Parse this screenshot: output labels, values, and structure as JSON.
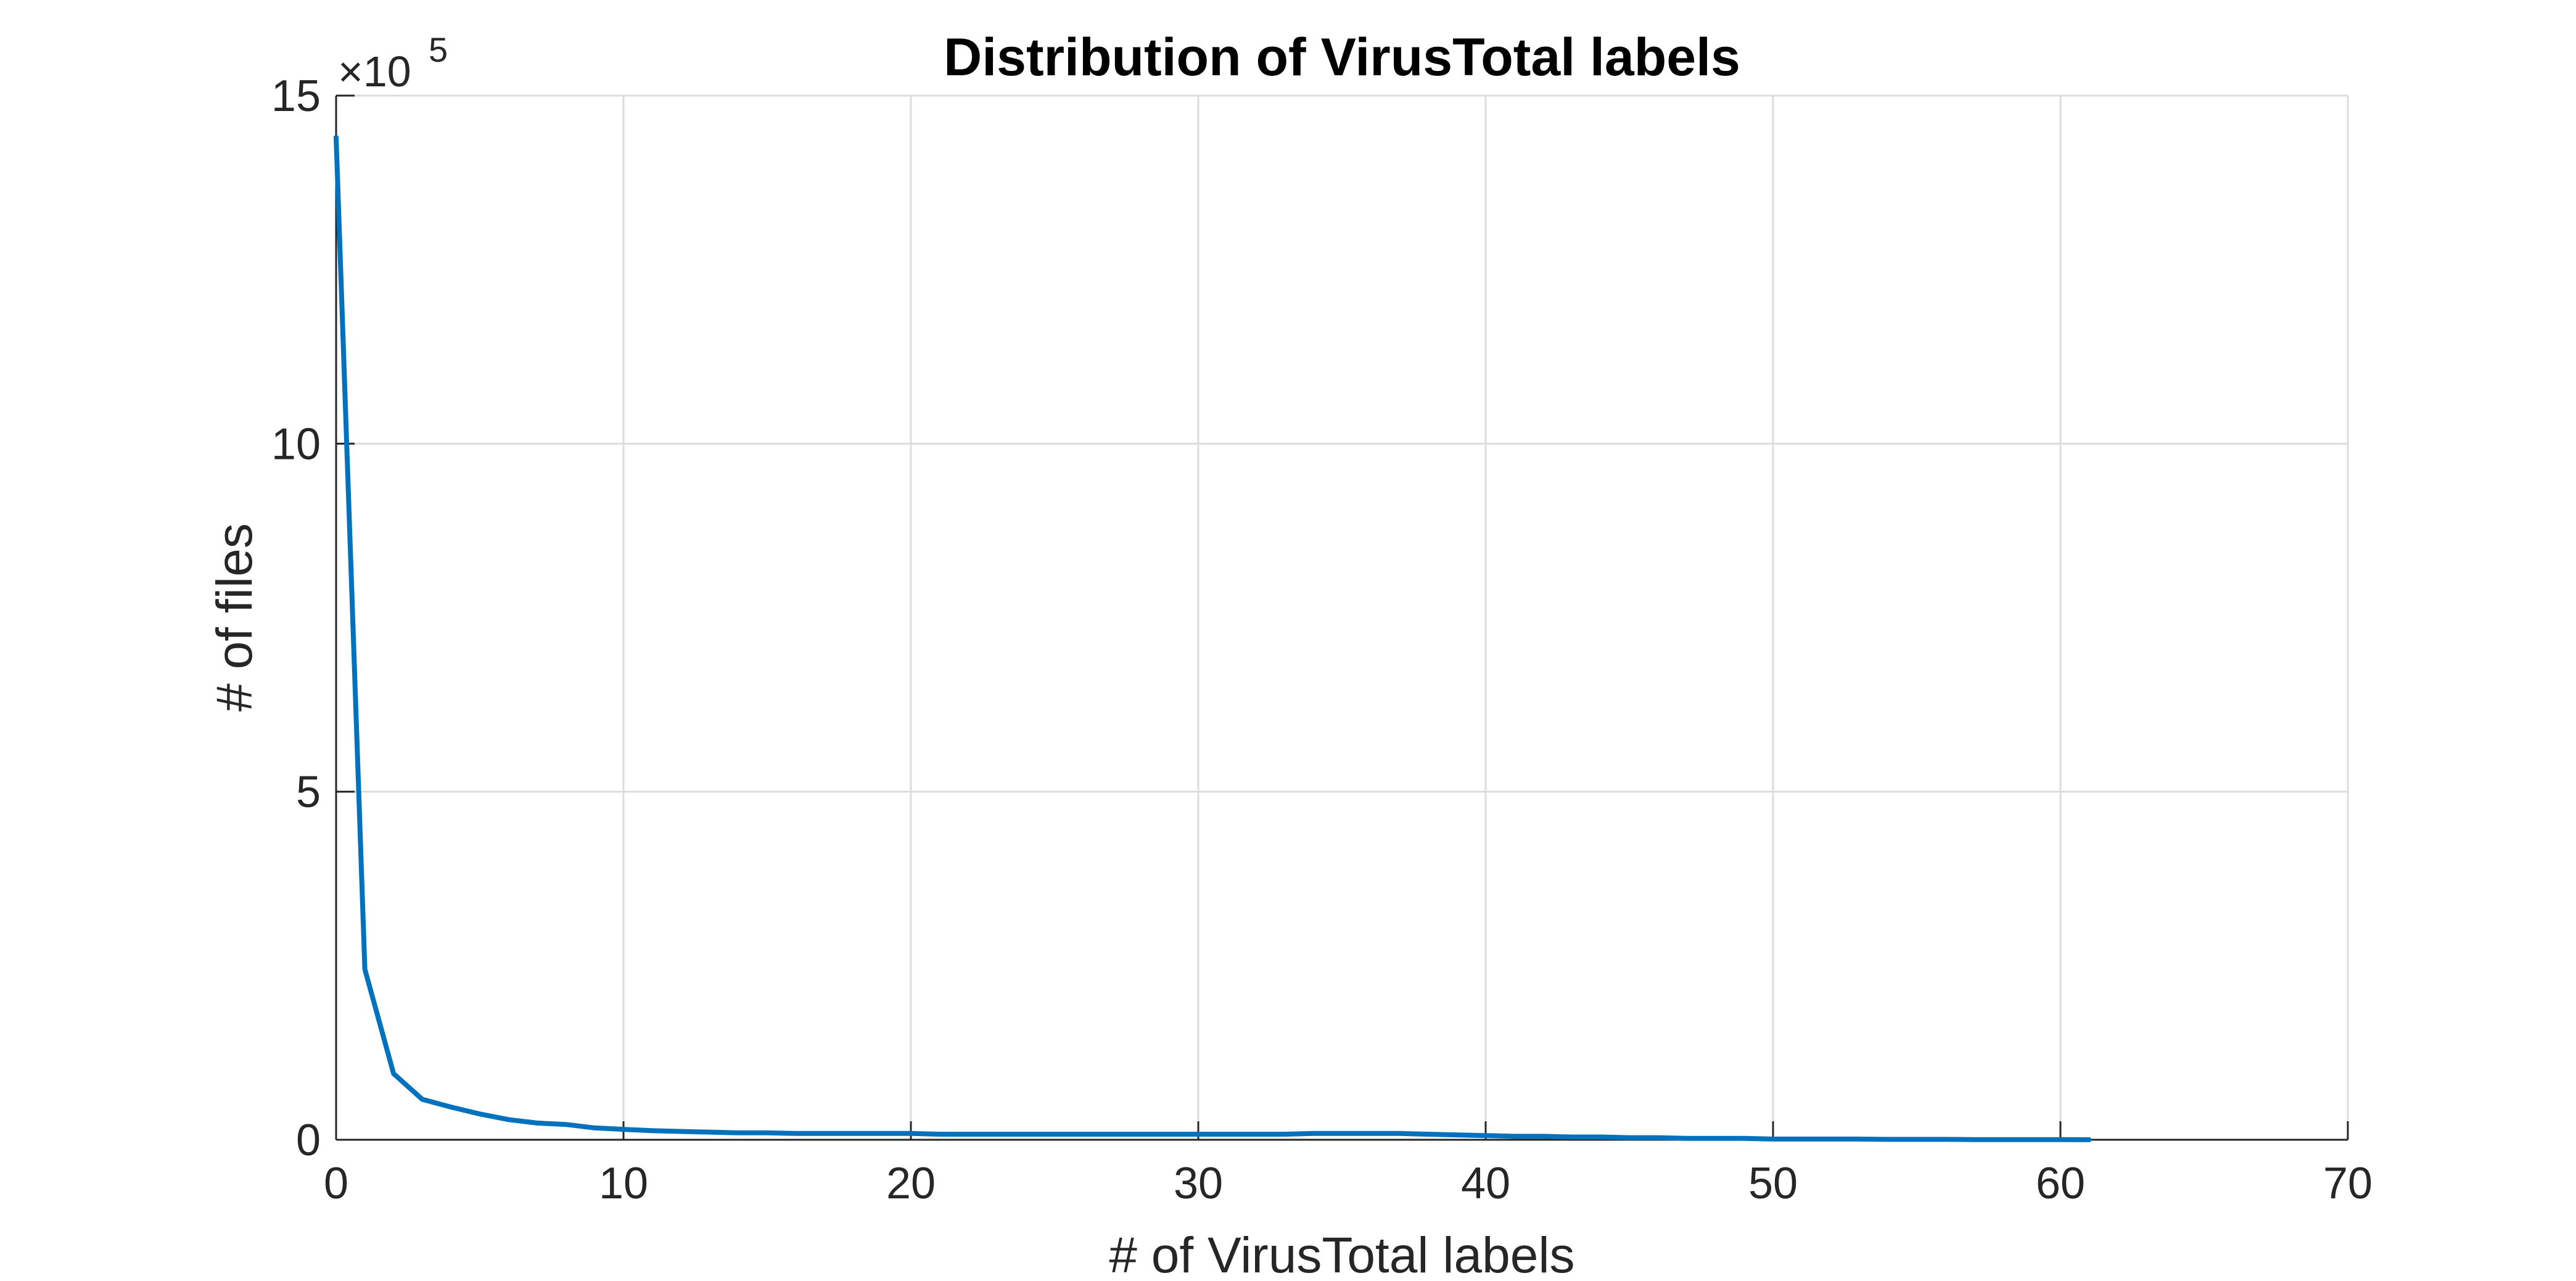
{
  "chart_data": {
    "type": "line",
    "title": "Distribution of VirusTotal labels",
    "xlabel": "# of VirusTotal labels",
    "ylabel": "# of files",
    "y_exponent_prefix": "×10",
    "y_exponent_power": "5",
    "xlim": [
      0,
      70
    ],
    "ylim": [
      0,
      15
    ],
    "xticks": [
      "0",
      "10",
      "20",
      "30",
      "40",
      "50",
      "60",
      "70"
    ],
    "yticks": [
      "0",
      "5",
      "10",
      "15"
    ],
    "xtick_values": [
      0,
      10,
      20,
      30,
      40,
      50,
      60,
      70
    ],
    "ytick_values": [
      0,
      5,
      10,
      15
    ],
    "grid": true,
    "line_color": "#0072BD",
    "series": [
      {
        "x": [
          0,
          1,
          2,
          3,
          4,
          5,
          6,
          7,
          8,
          9,
          10,
          11,
          12,
          13,
          14,
          15,
          16,
          17,
          18,
          19,
          20,
          21,
          22,
          23,
          24,
          25,
          26,
          27,
          28,
          29,
          30,
          31,
          32,
          33,
          34,
          35,
          36,
          37,
          38,
          39,
          40,
          41,
          42,
          43,
          44,
          45,
          46,
          47,
          48,
          49,
          50,
          51,
          52,
          53,
          54,
          55,
          56,
          57,
          58,
          59,
          60,
          61
        ],
        "values": [
          14.4,
          2.45,
          0.95,
          0.58,
          0.47,
          0.37,
          0.29,
          0.24,
          0.22,
          0.17,
          0.15,
          0.13,
          0.12,
          0.11,
          0.1,
          0.1,
          0.09,
          0.09,
          0.09,
          0.09,
          0.09,
          0.08,
          0.08,
          0.08,
          0.08,
          0.08,
          0.08,
          0.08,
          0.08,
          0.08,
          0.08,
          0.08,
          0.08,
          0.08,
          0.09,
          0.09,
          0.09,
          0.09,
          0.08,
          0.07,
          0.06,
          0.05,
          0.05,
          0.04,
          0.04,
          0.03,
          0.03,
          0.02,
          0.02,
          0.02,
          0.01,
          0.01,
          0.01,
          0.01,
          0.005,
          0.005,
          0.005,
          0.003,
          0.003,
          0.002,
          0.002,
          0.001
        ]
      }
    ]
  }
}
